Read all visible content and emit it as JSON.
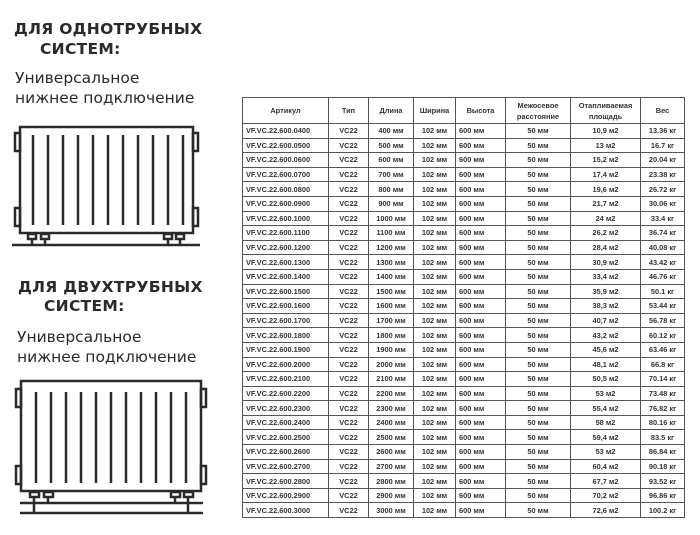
{
  "section1": {
    "title_line1": "ДЛЯ ОДНОТРУБНЫХ",
    "title_line2": "СИСТЕМ:",
    "subtitle_line1": "Универсальное",
    "subtitle_line2": "нижнее подключение"
  },
  "section2": {
    "title_line1": "ДЛЯ ДВУХТРУБНЫХ",
    "title_line2": "СИСТЕМ:",
    "subtitle_line1": "Универсальное",
    "subtitle_line2": "нижнее подключение"
  },
  "table": {
    "headers": [
      "Артикул",
      "Тип",
      "Длина",
      "Ширина",
      "Высота",
      "Межосевое расстояние",
      "Отапливаемая площадь",
      "Вес"
    ],
    "rows": [
      [
        "VF.VC.22.600.0400",
        "VC22",
        "400 мм",
        "102 мм",
        "600 мм",
        "50 мм",
        "10,9 м2",
        "13.36 кг"
      ],
      [
        "VF.VC.22.600.0500",
        "VC22",
        "500 мм",
        "102 мм",
        "600 мм",
        "50 мм",
        "13 м2",
        "16.7 кг"
      ],
      [
        "VF.VC.22.600.0600",
        "VC22",
        "600 мм",
        "102 мм",
        "600 мм",
        "50 мм",
        "15,2 м2",
        "20.04 кг"
      ],
      [
        "VF.VC.22.600.0700",
        "VC22",
        "700 мм",
        "102 мм",
        "600 мм",
        "50 мм",
        "17,4 м2",
        "23.38 кг"
      ],
      [
        "VF.VC.22.600.0800",
        "VC22",
        "800 мм",
        "102 мм",
        "600 мм",
        "50 мм",
        "19,6 м2",
        "26.72 кг"
      ],
      [
        "VF.VC.22.600.0900",
        "VC22",
        "900 мм",
        "102 мм",
        "600 мм",
        "50 мм",
        "21,7 м2",
        "30.06 кг"
      ],
      [
        "VF.VC.22.600.1000",
        "VC22",
        "1000 мм",
        "102 мм",
        "600 мм",
        "50 мм",
        "24 м2",
        "33.4 кг"
      ],
      [
        "VF.VC.22.600.1100",
        "VC22",
        "1100 мм",
        "102 мм",
        "600 мм",
        "50 мм",
        "26,2 м2",
        "36.74 кг"
      ],
      [
        "VF.VC.22.600.1200",
        "VC22",
        "1200 мм",
        "102 мм",
        "600 мм",
        "50 мм",
        "28,4 м2",
        "40.08 кг"
      ],
      [
        "VF.VC.22.600.1300",
        "VC22",
        "1300 мм",
        "102 мм",
        "600 мм",
        "50 мм",
        "30,9 м2",
        "43.42 кг"
      ],
      [
        "VF.VC.22.600.1400",
        "VC22",
        "1400 мм",
        "102 мм",
        "600 мм",
        "50 мм",
        "33,4 м2",
        "46.76 кг"
      ],
      [
        "VF.VC.22.600.1500",
        "VC22",
        "1500 мм",
        "102 мм",
        "600 мм",
        "50 мм",
        "35,9 м2",
        "50.1 кг"
      ],
      [
        "VF.VC.22.600.1600",
        "VC22",
        "1600 мм",
        "102 мм",
        "600 мм",
        "50 мм",
        "38,3 м2",
        "53.44 кг"
      ],
      [
        "VF.VC.22.600.1700",
        "VC22",
        "1700 мм",
        "102 мм",
        "600 мм",
        "50 мм",
        "40,7 м2",
        "56.78 кг"
      ],
      [
        "VF.VC.22.600.1800",
        "VC22",
        "1800 мм",
        "102 мм",
        "600 мм",
        "50 мм",
        "43,2 м2",
        "60.12 кг"
      ],
      [
        "VF.VC.22.600.1900",
        "VC22",
        "1900 мм",
        "102 мм",
        "600 мм",
        "50 мм",
        "45,6 м2",
        "63.46 кг"
      ],
      [
        "VF.VC.22.600.2000",
        "VC22",
        "2000 мм",
        "102 мм",
        "600 мм",
        "50 мм",
        "48,1 м2",
        "66.8 кг"
      ],
      [
        "VF.VC.22.600.2100",
        "VC22",
        "2100 мм",
        "102 мм",
        "600 мм",
        "50 мм",
        "50,5 м2",
        "70.14 кг"
      ],
      [
        "VF.VC.22.600.2200",
        "VC22",
        "2200 мм",
        "102 мм",
        "600 мм",
        "50 мм",
        "53 м2",
        "73.48 кг"
      ],
      [
        "VF.VC.22.600.2300",
        "VC22",
        "2300 мм",
        "102 мм",
        "600 мм",
        "50 мм",
        "55,4 м2",
        "76.82 кг"
      ],
      [
        "VF.VC.22.600.2400",
        "VC22",
        "2400 мм",
        "102 мм",
        "600 мм",
        "50 мм",
        "58 м2",
        "80.16 кг"
      ],
      [
        "VF.VC.22.600.2500",
        "VC22",
        "2500 мм",
        "102 мм",
        "600 мм",
        "50 мм",
        "59,4 м2",
        "83.5 кг"
      ],
      [
        "VF.VC.22.600.2600",
        "VC22",
        "2600 мм",
        "102 мм",
        "600 мм",
        "50 мм",
        "53 м2",
        "86.84 кг"
      ],
      [
        "VF.VC.22.600.2700",
        "VC22",
        "2700 мм",
        "102 мм",
        "600 мм",
        "50 мм",
        "60,4 м2",
        "90.18 кг"
      ],
      [
        "VF.VC.22.600.2800",
        "VC22",
        "2800 мм",
        "102 мм",
        "600 мм",
        "50 мм",
        "67,7 м2",
        "93.52 кг"
      ],
      [
        "VF.VC.22.600.2900",
        "VC22",
        "2900 мм",
        "102 мм",
        "600 мм",
        "50 мм",
        "70,2 м2",
        "96.86 кг"
      ],
      [
        "VF.VC.22.600.3000",
        "VC22",
        "3000 мм",
        "102 мм",
        "600 мм",
        "50 мм",
        "72,6 м2",
        "100.2 кг"
      ]
    ]
  }
}
